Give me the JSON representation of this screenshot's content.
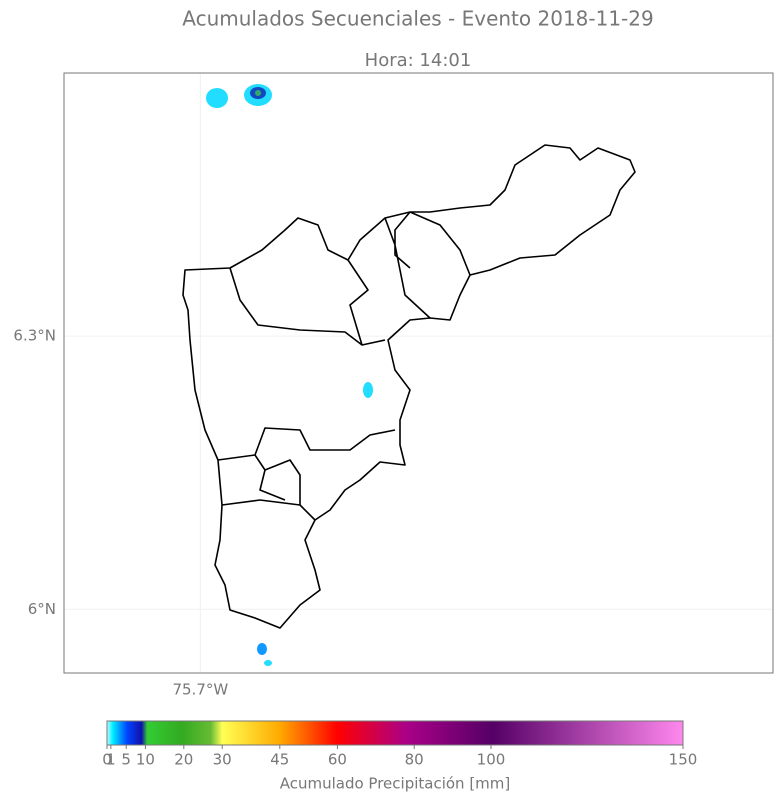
{
  "chart_data": {
    "type": "map",
    "title": "Acumulados Secuenciales - Evento 2018-11-29",
    "subtitle": "Hora: 14:01",
    "xlim": [
      -75.85,
      -75.07
    ],
    "ylim": [
      5.93,
      6.589
    ],
    "xticks": [
      {
        "value": -75.7,
        "label": "75.7°W"
      }
    ],
    "yticks": [
      {
        "value": 6.0,
        "label": "6°N"
      },
      {
        "value": 6.3,
        "label": "6.3°N"
      }
    ],
    "grid": true,
    "colorbar": {
      "label": "Acumulado Precipitación [mm]",
      "lim": [
        0,
        150
      ],
      "ticks": [
        0,
        1,
        5,
        10,
        20,
        30,
        45,
        60,
        80,
        100,
        150
      ]
    }
  }
}
